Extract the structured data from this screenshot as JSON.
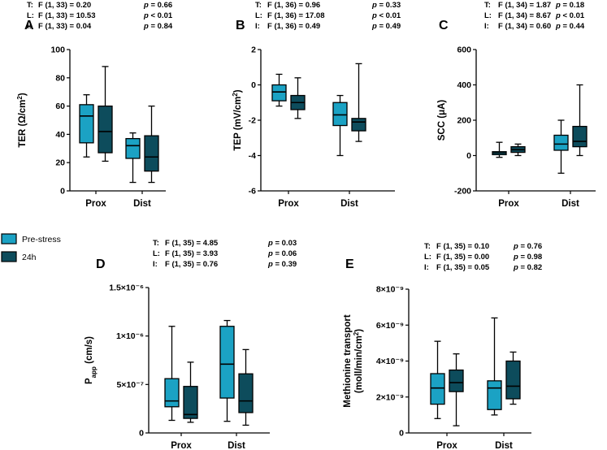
{
  "colors": {
    "pre": "#1ba2c4",
    "post": "#0d4c5c",
    "stroke": "#000000"
  },
  "legend": [
    {
      "label": "Pre-stress",
      "color": "#1ba2c4"
    },
    {
      "label": "24h",
      "color": "#0d4c5c"
    }
  ],
  "chart_data": [
    {
      "id": "A",
      "type": "boxplot",
      "letter": "A",
      "ylabel": "TER (Ω/cm²)",
      "ylabel_main": "TER (Ω/cm",
      "ylabel_unit_sup": "2",
      "ylabel_close": ")",
      "ylim": [
        0,
        100
      ],
      "yticks": [
        0,
        20,
        40,
        60,
        80,
        100
      ],
      "yticklabels": [
        "0",
        "20",
        "40",
        "60",
        "80",
        "100"
      ],
      "categories": [
        "Prox",
        "Dist"
      ],
      "series": [
        {
          "name": "Pre-stress",
          "boxes": [
            {
              "min": 24,
              "q1": 34,
              "median": 53,
              "q3": 61,
              "max": 68
            },
            {
              "min": 6,
              "q1": 23,
              "median": 32,
              "q3": 37,
              "max": 41
            }
          ]
        },
        {
          "name": "24h",
          "boxes": [
            {
              "min": 21,
              "q1": 27,
              "median": 42,
              "q3": 60,
              "max": 88
            },
            {
              "min": 6,
              "q1": 14,
              "median": 24,
              "q3": 39,
              "max": 60
            }
          ]
        }
      ],
      "stats": [
        {
          "key": "T:",
          "f": "F (1, 33) = 0.20",
          "p": "= 0.66"
        },
        {
          "key": "L:",
          "f": "F (1, 33) = 10.53",
          "p": "< 0.01"
        },
        {
          "key": "I:",
          "f": "F (1, 33) = 0.04",
          "p": "= 0.84"
        }
      ]
    },
    {
      "id": "B",
      "type": "boxplot",
      "letter": "B",
      "ylabel": "TEP (mV/cm²)",
      "ylabel_main": "TEP (mV/cm",
      "ylabel_unit_sup": "2",
      "ylabel_close": ")",
      "ylim": [
        -6,
        2
      ],
      "yticks": [
        -6,
        -4,
        -2,
        0,
        2
      ],
      "yticklabels": [
        "-6",
        "-4",
        "-2",
        "0",
        "2"
      ],
      "categories": [
        "Prox",
        "Dist"
      ],
      "series": [
        {
          "name": "Pre-stress",
          "boxes": [
            {
              "min": -1.2,
              "q1": -0.9,
              "median": -0.4,
              "q3": 0.0,
              "max": 0.6
            },
            {
              "min": -4.0,
              "q1": -2.3,
              "median": -1.7,
              "q3": -1.0,
              "max": -0.6
            }
          ]
        },
        {
          "name": "24h",
          "boxes": [
            {
              "min": -1.9,
              "q1": -1.4,
              "median": -1.0,
              "q3": -0.6,
              "max": 0.4
            },
            {
              "min": -3.2,
              "q1": -2.6,
              "median": -2.1,
              "q3": -1.9,
              "max": 1.2
            }
          ]
        }
      ],
      "stats": [
        {
          "key": "T:",
          "f": "F (1, 36) = 0.96",
          "p": "= 0.33"
        },
        {
          "key": "L:",
          "f": "F (1, 36) = 17.08",
          "p": "< 0.01"
        },
        {
          "key": "I:",
          "f": "F (1, 36) = 0.49",
          "p": "= 0.49"
        }
      ]
    },
    {
      "id": "C",
      "type": "boxplot",
      "letter": "C",
      "ylabel": "SCC (μA)",
      "ylabel_main": "SCC (μA)",
      "ylabel_unit_sup": "",
      "ylabel_close": "",
      "ylim": [
        -200,
        600
      ],
      "yticks": [
        -200,
        0,
        200,
        400,
        600
      ],
      "yticklabels": [
        "-200",
        "0",
        "200",
        "400",
        "600"
      ],
      "categories": [
        "Prox",
        "Dist"
      ],
      "series": [
        {
          "name": "Pre-stress",
          "boxes": [
            {
              "min": -10,
              "q1": 5,
              "median": 14,
              "q3": 22,
              "max": 75
            },
            {
              "min": -100,
              "q1": 30,
              "median": 65,
              "q3": 115,
              "max": 200
            }
          ]
        },
        {
          "name": "24h",
          "boxes": [
            {
              "min": 0,
              "q1": 18,
              "median": 33,
              "q3": 50,
              "max": 65
            },
            {
              "min": 0,
              "q1": 50,
              "median": 80,
              "q3": 165,
              "max": 400
            }
          ]
        }
      ],
      "stats": [
        {
          "key": "T:",
          "f": "F (1, 34) = 1.87",
          "p": "= 0.18"
        },
        {
          "key": "L:",
          "f": "F (1, 34) = 8.67",
          "p": "< 0.01"
        },
        {
          "key": "I:",
          "f": "F (1, 34) = 0.60",
          "p": "= 0.44"
        }
      ]
    },
    {
      "id": "D",
      "type": "boxplot",
      "letter": "D",
      "ylabel": "Papp (cm/s)",
      "ylabel_main": "P",
      "ylabel_unit_sub": "app",
      "ylabel_rest": " (cm/s)",
      "ylim": [
        0,
        1.5e-06
      ],
      "yticks": [
        0,
        5e-07,
        1e-06,
        1.5e-06
      ],
      "yticklabels": [
        "0",
        "5×10⁻⁷",
        "1×10⁻⁶",
        "1.5×10⁻⁶"
      ],
      "categories": [
        "Prox",
        "Dist"
      ],
      "series": [
        {
          "name": "Pre-stress",
          "boxes": [
            {
              "min": 1.3e-07,
              "q1": 2.7e-07,
              "median": 3.3e-07,
              "q3": 5.6e-07,
              "max": 1.1e-06
            },
            {
              "min": 1.2e-07,
              "q1": 3.6e-07,
              "median": 7.1e-07,
              "q3": 1.1e-06,
              "max": 1.16e-06
            }
          ]
        },
        {
          "name": "24h",
          "boxes": [
            {
              "min": 1.1e-07,
              "q1": 1.5e-07,
              "median": 1.9e-07,
              "q3": 4.8e-07,
              "max": 7.3e-07
            },
            {
              "min": 8e-08,
              "q1": 2.1e-07,
              "median": 3.3e-07,
              "q3": 6.1e-07,
              "max": 8.6e-07
            }
          ]
        }
      ],
      "stats": [
        {
          "key": "T:",
          "f": "F (1, 35) = 4.85",
          "p": "= 0.03"
        },
        {
          "key": "L:",
          "f": "F (1, 35) = 3.93",
          "p": "= 0.06"
        },
        {
          "key": "I:",
          "f": "F (1, 35) = 0.76",
          "p": "= 0.39"
        }
      ]
    },
    {
      "id": "E",
      "type": "boxplot",
      "letter": "E",
      "ylabel": "Methionine transport (moll/min/cm²)",
      "ylabel_line1": "Methionine transport",
      "ylabel_line2_main": "(moll/min/cm",
      "ylabel_unit_sup": "2",
      "ylabel_close": ")",
      "ylim": [
        0,
        8e-09
      ],
      "yticks": [
        0,
        2e-09,
        4e-09,
        6e-09,
        8e-09
      ],
      "yticklabels": [
        "0",
        "2×10⁻⁹",
        "4×10⁻⁹",
        "6×10⁻⁹",
        "8×10⁻⁹"
      ],
      "categories": [
        "Prox",
        "Dist"
      ],
      "series": [
        {
          "name": "Pre-stress",
          "boxes": [
            {
              "min": 8e-10,
              "q1": 1.6e-09,
              "median": 2.5e-09,
              "q3": 3.3e-09,
              "max": 5.1e-09
            },
            {
              "min": 1e-09,
              "q1": 1.3e-09,
              "median": 2.5e-09,
              "q3": 2.9e-09,
              "max": 6.4e-09
            }
          ]
        },
        {
          "name": "24h",
          "boxes": [
            {
              "min": 4e-10,
              "q1": 2.3e-09,
              "median": 2.8e-09,
              "q3": 3.5e-09,
              "max": 4.4e-09
            },
            {
              "min": 1.6e-09,
              "q1": 1.9e-09,
              "median": 2.6e-09,
              "q3": 4e-09,
              "max": 4.5e-09
            }
          ]
        }
      ],
      "stats": [
        {
          "key": "T:",
          "f": "F (1, 35) = 0.10",
          "p": "= 0.76"
        },
        {
          "key": "L:",
          "f": "F (1, 35) = 0.00",
          "p": "= 0.98"
        },
        {
          "key": "I:",
          "f": "F (1, 35) = 0.05",
          "p": "= 0.82"
        }
      ]
    }
  ]
}
